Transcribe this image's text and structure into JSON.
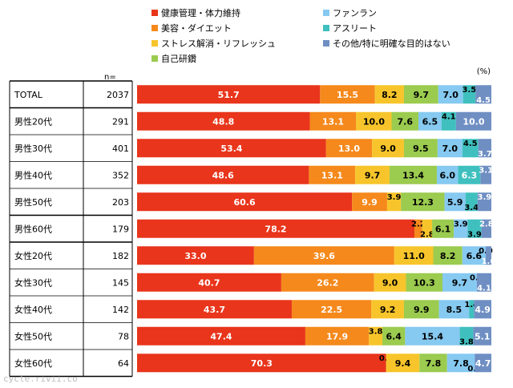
{
  "chart_data": {
    "type": "bar",
    "orientation": "horizontal",
    "stacked": true,
    "unit": "(%)",
    "n_header": "n=",
    "legend": [
      {
        "name": "健康管理・体力維持",
        "color": "#E8351B"
      },
      {
        "name": "美容・ダイエット",
        "color": "#F5891C"
      },
      {
        "name": "ストレス解消・リフレッシュ",
        "color": "#F7C52B"
      },
      {
        "name": "自己研鑽",
        "color": "#9BCB4F"
      },
      {
        "name": "ファンラン",
        "color": "#86C9F1"
      },
      {
        "name": "アスリート",
        "color": "#3FC0BF"
      },
      {
        "name": "その他/特に明確な目的はない",
        "color": "#6F8FC3"
      }
    ],
    "categories": [
      "TOTAL",
      "男性20代",
      "男性30代",
      "男性40代",
      "男性50代",
      "男性60代",
      "女性20代",
      "女性30代",
      "女性40代",
      "女性50代",
      "女性60代"
    ],
    "n": [
      2037,
      291,
      401,
      352,
      203,
      179,
      182,
      145,
      142,
      78,
      64
    ],
    "values": [
      [
        51.7,
        15.5,
        8.2,
        9.7,
        7.0,
        3.5,
        4.5
      ],
      [
        48.8,
        13.1,
        10.0,
        7.6,
        6.5,
        4.1,
        10.0
      ],
      [
        53.4,
        13.0,
        9.0,
        9.5,
        7.0,
        4.5,
        3.7
      ],
      [
        48.6,
        13.1,
        9.7,
        13.4,
        6.0,
        6.3,
        3.1
      ],
      [
        60.6,
        9.9,
        3.9,
        12.3,
        5.9,
        3.4,
        3.9
      ],
      [
        78.2,
        2.2,
        2.8,
        6.1,
        3.9,
        3.9,
        2.8
      ],
      [
        33.0,
        39.6,
        11.0,
        8.2,
        6.6,
        0.0,
        1.6
      ],
      [
        40.7,
        26.2,
        9.0,
        10.3,
        9.7,
        0.0,
        4.1
      ],
      [
        43.7,
        22.5,
        9.2,
        9.9,
        8.5,
        1.4,
        4.9
      ],
      [
        47.4,
        17.9,
        3.8,
        6.4,
        15.4,
        3.8,
        5.1
      ],
      [
        70.3,
        0.0,
        9.4,
        7.8,
        7.8,
        0.0,
        4.7
      ]
    ],
    "xlim": [
      0,
      100
    ]
  },
  "watermark": "cycle.rivii.co"
}
